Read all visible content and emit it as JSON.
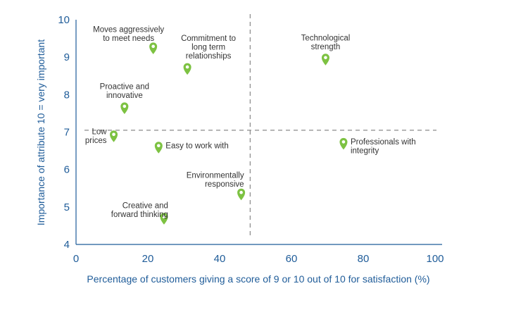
{
  "chart_data": {
    "type": "scatter",
    "xlabel": "Percentage of customers giving a score of 9 or 10 out of 10 for satisfaction (%)",
    "ylabel": "Importance of attribute 10 = very important",
    "xlim": [
      0,
      100
    ],
    "ylim": [
      4,
      10
    ],
    "xticks": [
      "0",
      "20",
      "40",
      "60",
      "80",
      "100"
    ],
    "yticks": [
      "4",
      "5",
      "6",
      "7",
      "8",
      "9",
      "10"
    ],
    "reference_lines": {
      "x": 48.5,
      "y": 7.05
    },
    "grid": false,
    "marker_color": "#7dc242",
    "axis_color": "#1f5c99",
    "points": [
      {
        "label": [
          "Moves aggressively",
          "to meet needs"
        ],
        "x": 21.5,
        "y": 9.1
      },
      {
        "label": [
          "Commitment to",
          "long term",
          "relationships"
        ],
        "x": 31,
        "y": 8.55
      },
      {
        "label": [
          "Technological",
          "strength"
        ],
        "x": 69.5,
        "y": 8.8
      },
      {
        "label": [
          "Proactive and",
          "innovative"
        ],
        "x": 13.5,
        "y": 7.5
      },
      {
        "label": [
          "Low",
          "prices"
        ],
        "x": 10.5,
        "y": 6.75
      },
      {
        "label": [
          "Easy to work with"
        ],
        "x": 23,
        "y": 6.45
      },
      {
        "label": [
          "Professionals with",
          "integrity"
        ],
        "x": 74.5,
        "y": 6.55
      },
      {
        "label": [
          "Environmentally",
          "responsive"
        ],
        "x": 46,
        "y": 5.2
      },
      {
        "label": [
          "Creative and",
          "forward thinking"
        ],
        "x": 24.5,
        "y": 4.55
      }
    ]
  }
}
